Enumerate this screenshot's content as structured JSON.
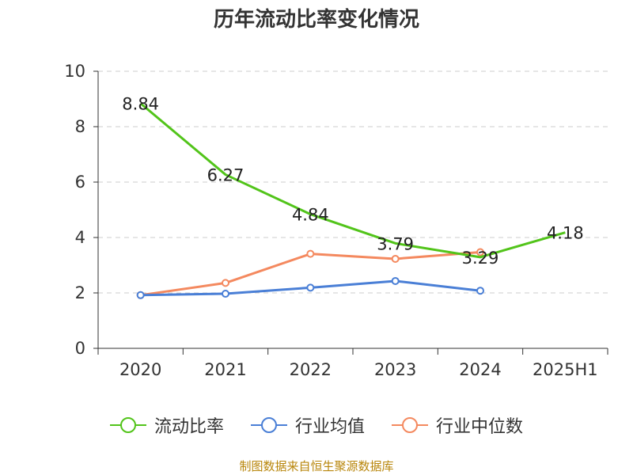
{
  "title": "历年流动比率变化情况",
  "source_note": "制图数据来自恒生聚源数据库",
  "legend": [
    {
      "label": "流动比率",
      "color": "#52c41a"
    },
    {
      "label": "行业均值",
      "color": "#4a7fd6"
    },
    {
      "label": "行业中位数",
      "color": "#f4895f"
    }
  ],
  "chart_data": {
    "type": "line",
    "title": "历年流动比率变化情况",
    "xlabel": "",
    "ylabel": "",
    "categories": [
      "2020",
      "2021",
      "2022",
      "2023",
      "2024",
      "2025H1"
    ],
    "ylim": [
      0,
      10
    ],
    "yticks": [
      0,
      2,
      4,
      6,
      8,
      10
    ],
    "grid": true,
    "legend_position": "bottom",
    "series": [
      {
        "name": "流动比率",
        "color": "#52c41a",
        "values": [
          8.84,
          6.27,
          4.84,
          3.79,
          3.29,
          4.18
        ],
        "labels": [
          "8.84",
          "6.27",
          "4.84",
          "3.79",
          "3.29",
          "4.18"
        ],
        "marker": false
      },
      {
        "name": "行业均值",
        "color": "#4a7fd6",
        "values": [
          1.92,
          1.97,
          2.19,
          2.43,
          2.08,
          null
        ],
        "marker": true
      },
      {
        "name": "行业中位数",
        "color": "#f4895f",
        "values": [
          1.92,
          2.36,
          3.41,
          3.23,
          3.47,
          null
        ],
        "marker": true
      }
    ]
  }
}
